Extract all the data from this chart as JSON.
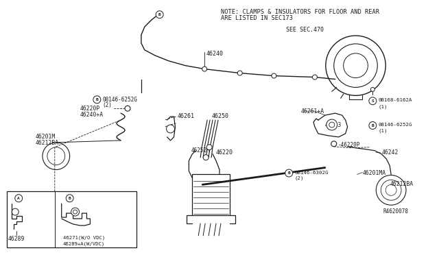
{
  "bg_color": "#ffffff",
  "line_color": "#1a1a1a",
  "text_color": "#1a1a1a",
  "note_text_line1": "NOTE: CLAMPS & INSULATORS FOR FLOOR AND REAR",
  "note_text_line2": "ARE LISTED IN SEC173",
  "see_sec": "SEE SEC.470",
  "ref_code": "R4620078",
  "figsize": [
    6.4,
    3.72
  ],
  "dpi": 100
}
